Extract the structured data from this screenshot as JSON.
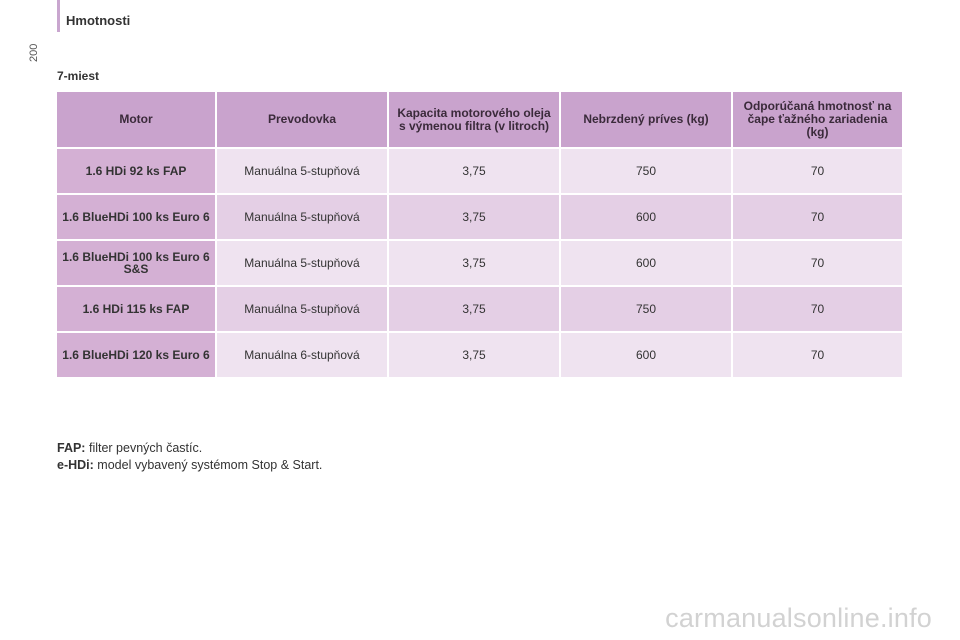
{
  "header": {
    "section_title": "Hmotnosti",
    "page_number": "200"
  },
  "table_heading": "7-miest",
  "table": {
    "columns": [
      "Motor",
      "Prevodovka",
      "Kapacita motorového oleja s výmenou filtra (v litroch)",
      "Nebrzdený príves (kg)",
      "Odporúčaná hmotnosť na čape ťažného zariadenia (kg)"
    ],
    "rows": [
      [
        "1.6 HDi 92 ks FAP",
        "Manuálna 5-stupňová",
        "3,75",
        "750",
        "70"
      ],
      [
        "1.6 BlueHDi 100 ks Euro 6",
        "Manuálna 5-stupňová",
        "3,75",
        "600",
        "70"
      ],
      [
        "1.6 BlueHDi 100 ks Euro 6 S&S",
        "Manuálna 5-stupňová",
        "3,75",
        "600",
        "70"
      ],
      [
        "1.6 HDi 115 ks FAP",
        "Manuálna 5-stupňová",
        "3,75",
        "750",
        "70"
      ],
      [
        "1.6 BlueHDi 120 ks Euro 6",
        "Manuálna 6-stupňová",
        "3,75",
        "600",
        "70"
      ]
    ]
  },
  "notes": [
    {
      "term": "FAP:",
      "text": "filter pevných častíc."
    },
    {
      "term": "e-HDi:",
      "text": "model vybavený systémom Stop & Start."
    }
  ],
  "watermark": "carmanualsonline.info",
  "colors": {
    "header_bg": "#c9a3cd",
    "motor_bg": "#d4b0d4",
    "row_light": "#efe3f0",
    "row_dark": "#e4cfe5"
  }
}
